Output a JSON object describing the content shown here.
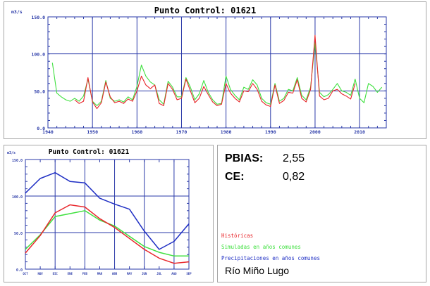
{
  "colors": {
    "historicas": "#e8252a",
    "simuladas": "#3ee03e",
    "precipitaciones": "#1f2fc4",
    "grid": "#2a3aa8",
    "axis_text": "#2a3aa8"
  },
  "stats": {
    "pbias_label": "PBIAS:",
    "pbias_value": "2,55",
    "ce_label": "CE:",
    "ce_value": "0,82"
  },
  "legend": {
    "historicas": "Históricas",
    "simuladas": "Simuladas en años comunes",
    "precipitaciones": "Precipitaciones en años comunes"
  },
  "station_name": "Río Miño Lugo",
  "chart_data": [
    {
      "type": "line",
      "title": "Punto Control: 01621",
      "ylabel": "m3/s",
      "ylim": [
        0,
        150
      ],
      "yticks": [
        "0.0",
        "50.0",
        "100.0",
        "150.0"
      ],
      "xlim": [
        1940,
        2016
      ],
      "xticks": [
        "1940",
        "1950",
        "1960",
        "1970",
        "1980",
        "1990",
        "2000",
        "2010"
      ],
      "grid": true,
      "x": [
        1940,
        1941,
        1942,
        1943,
        1944,
        1945,
        1946,
        1947,
        1948,
        1949,
        1950,
        1951,
        1952,
        1953,
        1954,
        1955,
        1956,
        1957,
        1958,
        1959,
        1960,
        1961,
        1962,
        1963,
        1964,
        1965,
        1966,
        1967,
        1968,
        1969,
        1970,
        1971,
        1972,
        1973,
        1974,
        1975,
        1976,
        1977,
        1978,
        1979,
        1980,
        1981,
        1982,
        1983,
        1984,
        1985,
        1986,
        1987,
        1988,
        1989,
        1990,
        1991,
        1992,
        1993,
        1994,
        1995,
        1996,
        1997,
        1998,
        1999,
        2000,
        2001,
        2002,
        2003,
        2004,
        2005,
        2006,
        2007,
        2008,
        2009,
        2010,
        2011,
        2012,
        2013,
        2014,
        2015
      ],
      "series": [
        {
          "key": "historicas",
          "values": [
            null,
            null,
            null,
            null,
            null,
            null,
            38,
            33,
            36,
            68,
            35,
            26,
            34,
            62,
            42,
            34,
            36,
            33,
            39,
            36,
            50,
            70,
            58,
            53,
            58,
            33,
            30,
            60,
            52,
            38,
            40,
            66,
            50,
            34,
            40,
            56,
            45,
            35,
            30,
            32,
            60,
            47,
            40,
            35,
            50,
            49,
            60,
            52,
            36,
            31,
            29,
            58,
            33,
            37,
            48,
            47,
            65,
            40,
            35,
            52,
            125,
            43,
            38,
            40,
            50,
            52,
            46,
            43,
            39,
            60,
            null,
            null,
            null,
            null,
            null,
            null
          ]
        },
        {
          "key": "simuladas",
          "values": [
            null,
            88,
            47,
            42,
            38,
            36,
            40,
            36,
            43,
            66,
            36,
            30,
            36,
            64,
            40,
            36,
            38,
            35,
            42,
            38,
            56,
            85,
            70,
            62,
            58,
            38,
            32,
            63,
            55,
            42,
            42,
            68,
            55,
            38,
            46,
            64,
            48,
            38,
            32,
            33,
            70,
            52,
            44,
            38,
            55,
            52,
            65,
            58,
            40,
            34,
            32,
            60,
            36,
            40,
            52,
            50,
            68,
            44,
            38,
            55,
            115,
            48,
            42,
            45,
            52,
            60,
            50,
            48,
            44,
            66,
            40,
            34,
            60,
            56,
            48,
            55
          ]
        }
      ]
    },
    {
      "type": "line",
      "title": "Punto Control: 01621",
      "ylabel": "m3/s",
      "ylim": [
        0,
        150
      ],
      "yticks": [
        "0.0",
        "50.0",
        "100.0",
        "150.0"
      ],
      "grid": true,
      "categories": [
        "OCT",
        "NOV",
        "DIC",
        "ENE",
        "FEB",
        "MAR",
        "ABR",
        "MAY",
        "JUN",
        "JUL",
        "AGO",
        "SEP"
      ],
      "series": [
        {
          "key": "historicas",
          "values": [
            22,
            46,
            77,
            88,
            85,
            69,
            57,
            42,
            27,
            15,
            8,
            10
          ]
        },
        {
          "key": "simuladas",
          "values": [
            27,
            47,
            72,
            76,
            80,
            67,
            59,
            45,
            31,
            23,
            18,
            18
          ]
        },
        {
          "key": "precipitaciones",
          "values": [
            104,
            124,
            132,
            120,
            118,
            97,
            89,
            82,
            52,
            27,
            38,
            62
          ]
        }
      ]
    }
  ]
}
